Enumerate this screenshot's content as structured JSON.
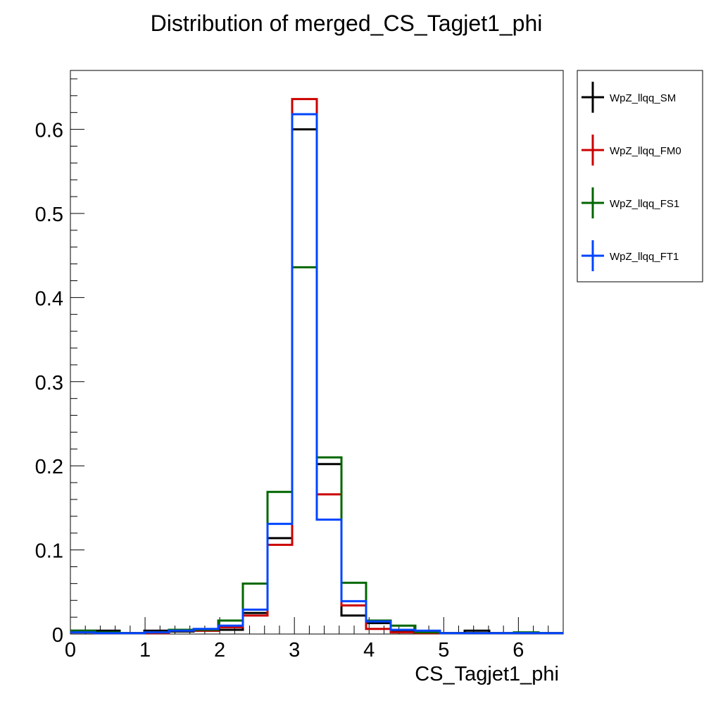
{
  "chart_data": {
    "type": "line",
    "title": "Distribution of merged_CS_Tagjet1_phi",
    "xlabel": "CS_Tagjet1_phi",
    "ylabel": "",
    "xlim": [
      0,
      6.6
    ],
    "ylim": [
      0,
      0.67
    ],
    "x_ticks": [
      "0",
      "1",
      "2",
      "3",
      "4",
      "5",
      "6"
    ],
    "y_ticks": [
      "0",
      "0.1",
      "0.2",
      "0.3",
      "0.4",
      "0.5",
      "0.6"
    ],
    "grid": false,
    "legend_position": "right",
    "bin_edges": [
      0,
      0.33,
      0.66,
      0.99,
      1.32,
      1.65,
      1.98,
      2.31,
      2.64,
      2.97,
      3.3,
      3.63,
      3.96,
      4.29,
      4.62,
      4.95,
      5.28,
      5.61,
      5.94,
      6.27,
      6.6
    ],
    "series": [
      {
        "name": "WpZ_llqq_SM",
        "color": "#000000",
        "values": [
          0.004,
          0.004,
          0.001,
          0.004,
          0.003,
          0.004,
          0.005,
          0.025,
          0.114,
          0.6,
          0.202,
          0.022,
          0.013,
          0.003,
          0.001,
          0.001,
          0.004,
          0.001,
          0.001,
          0.001
        ]
      },
      {
        "name": "WpZ_llqq_FM0",
        "color": "#cc0000",
        "values": [
          0.002,
          0.001,
          0.001,
          0.001,
          0.004,
          0.004,
          0.008,
          0.022,
          0.106,
          0.636,
          0.166,
          0.034,
          0.006,
          0.002,
          0.001,
          0.001,
          0.001,
          0.001,
          0.001,
          0.001
        ]
      },
      {
        "name": "WpZ_llqq_FS1",
        "color": "#006600",
        "values": [
          0.004,
          0.002,
          0.001,
          0.002,
          0.005,
          0.005,
          0.016,
          0.06,
          0.169,
          0.436,
          0.21,
          0.061,
          0.016,
          0.01,
          0.002,
          0.001,
          0.001,
          0.001,
          0.002,
          0.001
        ]
      },
      {
        "name": "WpZ_llqq_FT1",
        "color": "#0044ff",
        "values": [
          0.002,
          0.001,
          0.001,
          0.002,
          0.004,
          0.006,
          0.01,
          0.029,
          0.131,
          0.618,
          0.136,
          0.039,
          0.015,
          0.005,
          0.004,
          0.001,
          0.001,
          0.001,
          0.001,
          0.001
        ]
      }
    ]
  }
}
